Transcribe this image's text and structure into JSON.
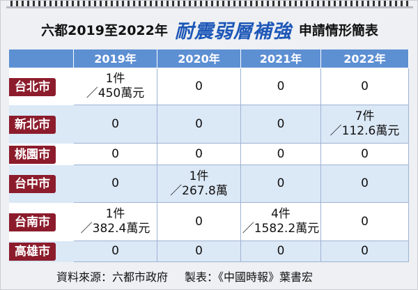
{
  "header": {
    "title_prefix": "六都2019至2022年",
    "title_emphasis": "耐震弱層補強",
    "title_suffix": "申請情形簡表"
  },
  "table": {
    "columns": [
      "2019年",
      "2020年",
      "2021年",
      "2022年"
    ],
    "rows": [
      {
        "label": "台北市",
        "cells": [
          [
            "1件",
            "／450萬元"
          ],
          [
            "0"
          ],
          [
            "0"
          ],
          [
            "0"
          ]
        ]
      },
      {
        "label": "新北市",
        "cells": [
          [
            "0"
          ],
          [
            "0"
          ],
          [
            "0"
          ],
          [
            "7件",
            "／112.6萬元"
          ]
        ]
      },
      {
        "label": "桃園市",
        "cells": [
          [
            "0"
          ],
          [
            "0"
          ],
          [
            "0"
          ],
          [
            "0"
          ]
        ]
      },
      {
        "label": "台中市",
        "cells": [
          [
            "0"
          ],
          [
            "1件",
            "／267.8萬"
          ],
          [
            "0"
          ],
          [
            "0"
          ]
        ]
      },
      {
        "label": "台南市",
        "cells": [
          [
            "1件",
            "／382.4萬元"
          ],
          [
            "0"
          ],
          [
            "4件",
            "／1582.2萬元"
          ],
          [
            "0"
          ]
        ]
      },
      {
        "label": "高雄市",
        "cells": [
          [
            "0"
          ],
          [
            "0"
          ],
          [
            "0"
          ],
          [
            "0"
          ]
        ]
      }
    ]
  },
  "footer": {
    "source": "資料來源：六都市政府",
    "credit": "製表：《中國時報》葉書宏"
  }
}
